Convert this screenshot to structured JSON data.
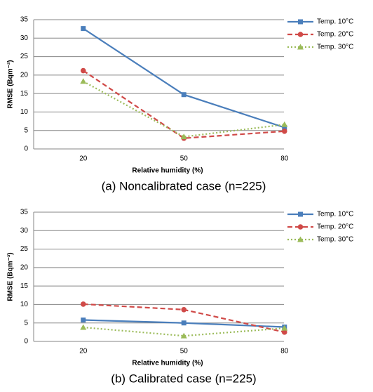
{
  "chart_data": [
    {
      "type": "line",
      "caption": "(a) Noncalibrated case (n=225)",
      "x_label": "Relative humidity (%)",
      "y_label": "RMSE (Bqm⁻³)",
      "categories": [
        "20",
        "50",
        "80"
      ],
      "ylim": [
        0,
        35
      ],
      "yticks": [
        0,
        5,
        10,
        15,
        20,
        25,
        30,
        35
      ],
      "grid": true,
      "series": [
        {
          "name": "Temp. 10°C",
          "color": "#4a7ebb",
          "marker": "square",
          "dash": "solid",
          "values": [
            32.6,
            14.7,
            5.8
          ]
        },
        {
          "name": "Temp. 20°C",
          "color": "#d04a48",
          "marker": "circle",
          "dash": "dashed",
          "values": [
            21.2,
            2.9,
            4.8
          ]
        },
        {
          "name": "Temp. 30°C",
          "color": "#9bbb59",
          "marker": "triangle",
          "dash": "dotted",
          "values": [
            18.3,
            3.3,
            6.6
          ]
        }
      ]
    },
    {
      "type": "line",
      "caption": "(b) Calibrated case (n=225)",
      "x_label": "Relative humidity (%)",
      "y_label": "RMSE (Bqm⁻³)",
      "categories": [
        "20",
        "50",
        "80"
      ],
      "ylim": [
        0,
        35
      ],
      "yticks": [
        0,
        5,
        10,
        15,
        20,
        25,
        30,
        35
      ],
      "grid": true,
      "series": [
        {
          "name": "Temp. 10°C",
          "color": "#4a7ebb",
          "marker": "square",
          "dash": "solid",
          "values": [
            5.8,
            5.0,
            3.9
          ]
        },
        {
          "name": "Temp. 20°C",
          "color": "#d04a48",
          "marker": "circle",
          "dash": "dashed",
          "values": [
            10.1,
            8.6,
            2.5
          ]
        },
        {
          "name": "Temp. 30°C",
          "color": "#9bbb59",
          "marker": "triangle",
          "dash": "dotted",
          "values": [
            3.8,
            1.5,
            3.6
          ]
        }
      ]
    }
  ]
}
